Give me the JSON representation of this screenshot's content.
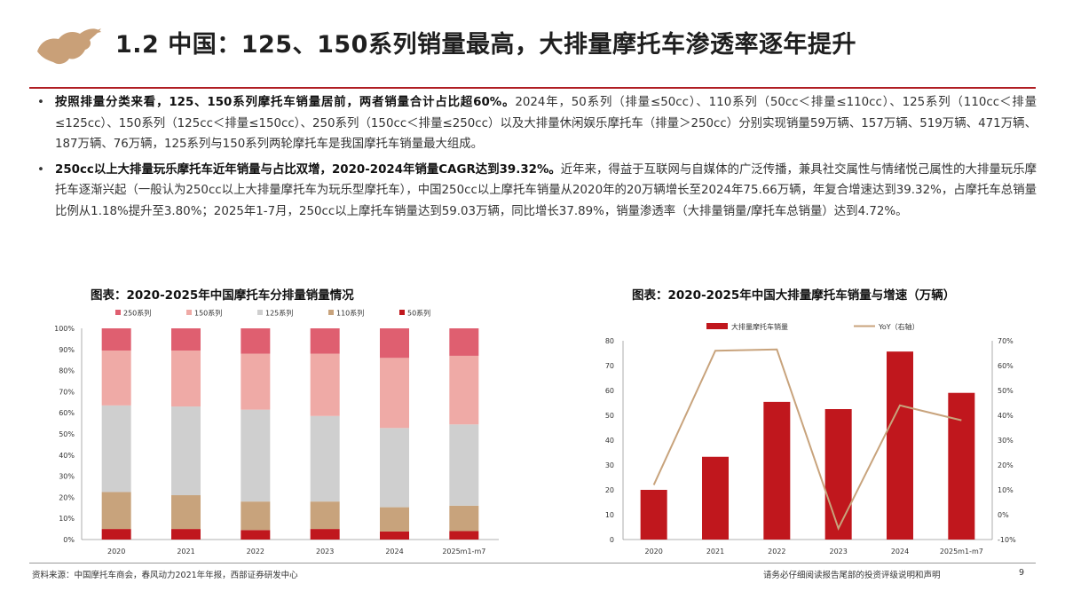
{
  "header": {
    "title": "1.2 中国：125、150系列销量最高，大排量摩托车渗透率逐年提升",
    "logo_icon": "bull-logo-icon",
    "accent_color": "#b01e23",
    "logo_color": "#c9a078"
  },
  "paragraphs": [
    {
      "bullet": "•",
      "bold": "按照排量分类来看，125、150系列摩托车销量居前，两者销量合计占比超60%。",
      "text": "2024年，50系列（排量≤50cc）、110系列（50cc＜排量≤110cc）、125系列（110cc＜排量≤125cc）、150系列（125cc＜排量≤150cc）、250系列（150cc＜排量≤250cc）以及大排量休闲娱乐摩托车（排量＞250cc）分别实现销量59万辆、157万辆、519万辆、471万辆、187万辆、76万辆，125系列与150系列两轮摩托车是我国摩托车销量最大组成。"
    },
    {
      "bullet": "•",
      "bold": "250cc以上大排量玩乐摩托车近年销量与占比双增，2020-2024年销量CAGR达到39.32%。",
      "text": "近年来，得益于互联网与自媒体的广泛传播，兼具社交属性与情绪悦己属性的大排量玩乐摩托车逐渐兴起（一般认为250cc以上大排量摩托车为玩乐型摩托车），中国250cc以上摩托车销量从2020年的20万辆增长至2024年75.66万辆，年复合增速达到39.32%，占摩托车总销量比例从1.18%提升至3.80%；2025年1-7月，250cc以上摩托车销量达到59.03万辆，同比增长37.89%，销量渗透率（大排量销量/摩托车总销量）达到4.72%。"
    }
  ],
  "chart_data": [
    {
      "type": "bar",
      "stacked": true,
      "title": "图表：2020-2025年中国摩托车分排量销量情况",
      "categories": [
        "2020",
        "2021",
        "2022",
        "2023",
        "2024",
        "2025m1-m7"
      ],
      "ylim": [
        0,
        100
      ],
      "yticks": [
        "0%",
        "10%",
        "20%",
        "30%",
        "40%",
        "50%",
        "60%",
        "70%",
        "80%",
        "90%",
        "100%"
      ],
      "legend_position": "top",
      "series": [
        {
          "name": "50系列",
          "color": "#c0171d",
          "values": [
            5,
            5,
            4.5,
            5,
            3.8,
            4
          ]
        },
        {
          "name": "110系列",
          "color": "#c8a37c",
          "values": [
            17.5,
            16,
            13.5,
            13,
            11.5,
            12
          ]
        },
        {
          "name": "125系列",
          "color": "#cfcfcf",
          "values": [
            41,
            42,
            43.5,
            40.5,
            37.5,
            38.5
          ]
        },
        {
          "name": "150系列",
          "color": "#efaaa6",
          "values": [
            26,
            26.5,
            26.5,
            29.5,
            33.2,
            32.5
          ]
        },
        {
          "name": "250系列",
          "color": "#df5f70",
          "values": [
            10.5,
            10.5,
            12,
            12,
            14,
            13
          ]
        }
      ],
      "legend_order": [
        4,
        3,
        2,
        1,
        0
      ]
    },
    {
      "type": "bar",
      "title": "图表：2020-2025年中国大排量摩托车销量与增速（万辆）",
      "categories": [
        "2020",
        "2021",
        "2022",
        "2023",
        "2024",
        "2025m1-m7"
      ],
      "ylim": [
        0,
        80
      ],
      "yticks": [
        "0",
        "10",
        "20",
        "30",
        "40",
        "50",
        "60",
        "70",
        "80"
      ],
      "y2lim": [
        -10,
        70
      ],
      "y2ticks": [
        "-10%",
        "0%",
        "10%",
        "20%",
        "30%",
        "40%",
        "50%",
        "60%",
        "70%"
      ],
      "legend_position": "top",
      "series": [
        {
          "name": "大排量摩托车销量",
          "color": "#c0171d",
          "kind": "bar",
          "values": [
            20,
            33.3,
            55.4,
            52.5,
            75.66,
            59.03
          ]
        },
        {
          "name": "YoY（右轴）",
          "color": "#c8a37c",
          "kind": "line",
          "axis": "right",
          "values": [
            12,
            66,
            66.5,
            -5.5,
            44,
            38
          ]
        }
      ]
    }
  ],
  "footer": {
    "source": "资料来源：中国摩托车商会，春风动力2021年年报，西部证券研发中心",
    "disclaimer": "请务必仔细阅读报告尾部的投资评级说明和声明",
    "page": "9"
  }
}
